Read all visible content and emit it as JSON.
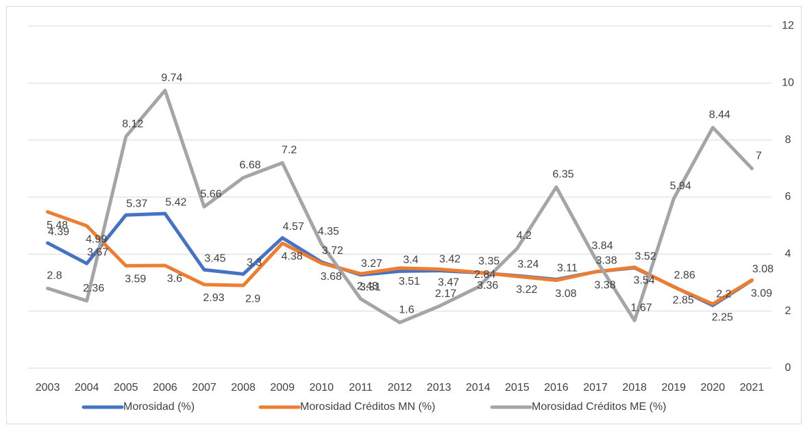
{
  "chart_data": {
    "type": "line",
    "categories": [
      "2003",
      "2004",
      "2005",
      "2006",
      "2007",
      "2008",
      "2009",
      "2010",
      "2011",
      "2012",
      "2013",
      "2014",
      "2015",
      "2016",
      "2017",
      "2018",
      "2019",
      "2020",
      "2021"
    ],
    "series": [
      {
        "name": "Morosidad (%)",
        "color": "#4472c4",
        "values": [
          4.39,
          3.67,
          5.37,
          5.42,
          3.45,
          3.3,
          4.57,
          3.72,
          3.27,
          3.4,
          3.42,
          3.35,
          3.24,
          3.11,
          3.38,
          3.52,
          2.86,
          2.2,
          3.08
        ]
      },
      {
        "name": "Morosidad Créditos MN (%)",
        "color": "#ed7d31",
        "values": [
          5.48,
          4.99,
          3.59,
          3.6,
          2.93,
          2.9,
          4.38,
          3.68,
          3.31,
          3.51,
          3.47,
          3.36,
          3.22,
          3.08,
          3.38,
          3.54,
          2.85,
          2.25,
          3.09
        ]
      },
      {
        "name": "Morosidad Créditos ME (%)",
        "color": "#a5a5a5",
        "values": [
          2.8,
          2.36,
          8.12,
          9.74,
          5.66,
          6.68,
          7.2,
          4.35,
          2.43,
          1.6,
          2.17,
          2.84,
          4.2,
          6.35,
          3.84,
          1.67,
          5.94,
          8.44,
          7
        ]
      }
    ],
    "ylim": [
      0,
      12
    ],
    "yticks": [
      0,
      2,
      4,
      6,
      8,
      10,
      12
    ],
    "grid": true,
    "legend": "bottom",
    "y_axis_side": "right"
  }
}
